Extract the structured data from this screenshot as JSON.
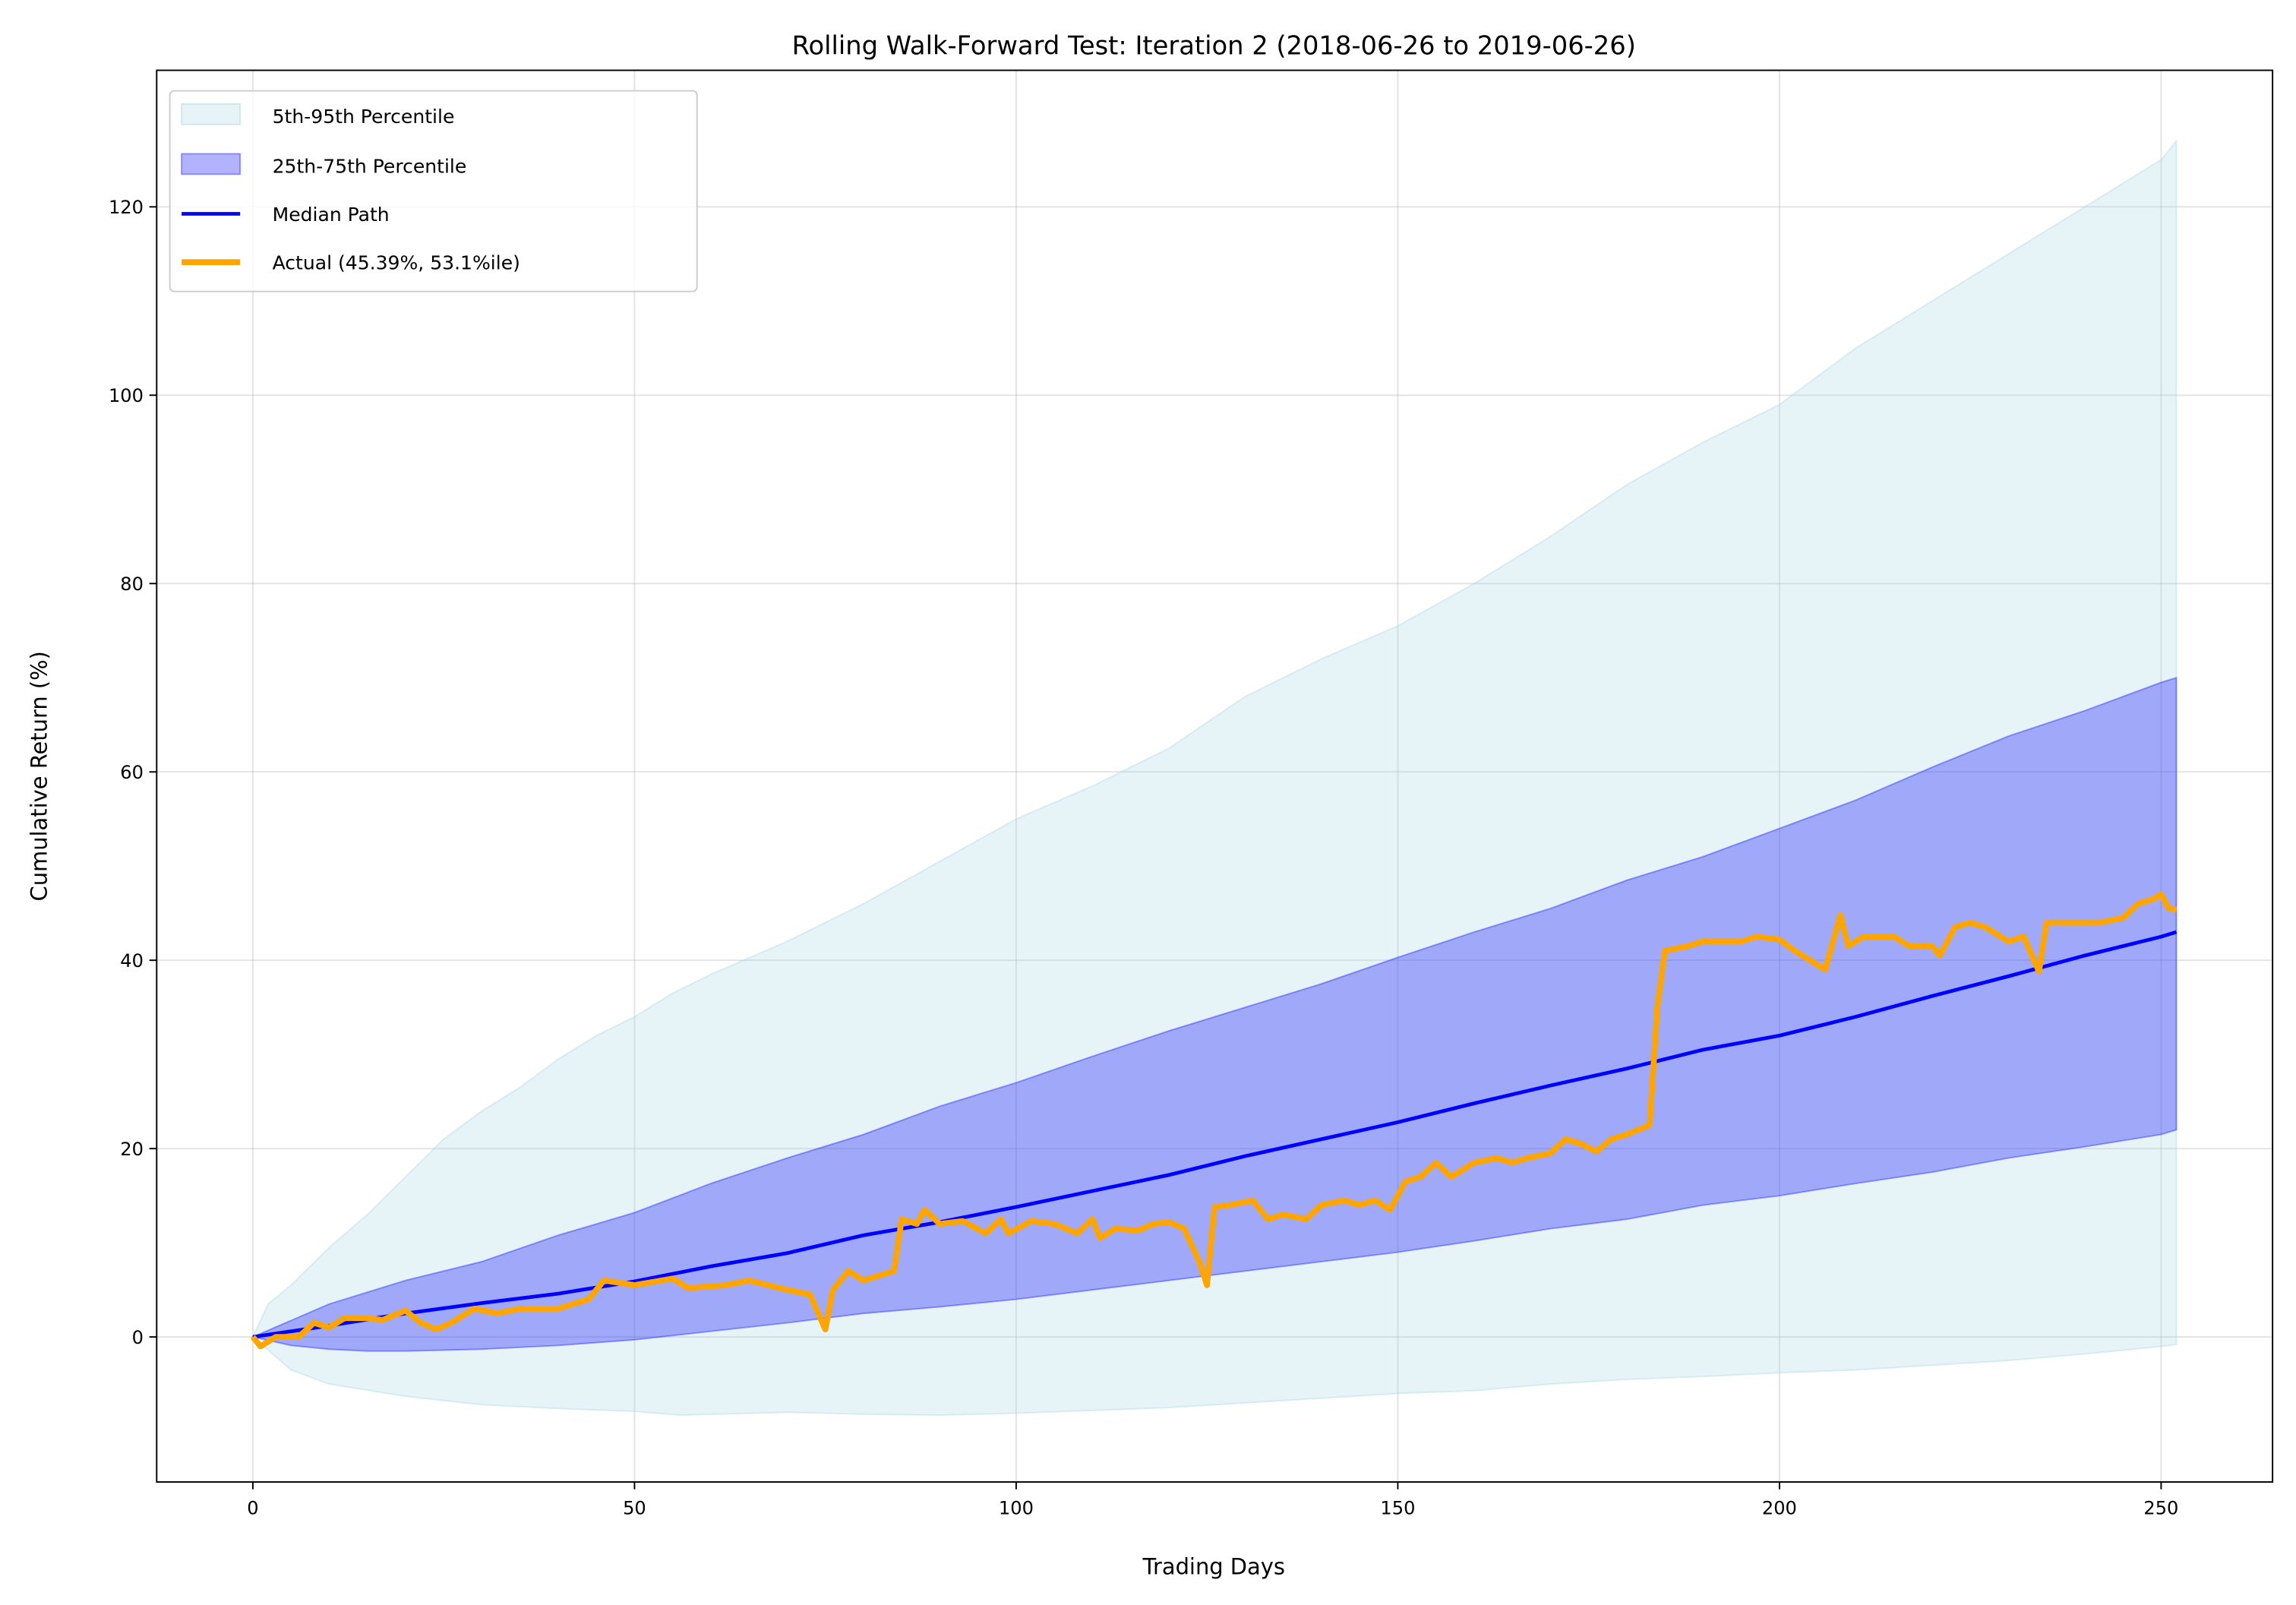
{
  "chart_data": {
    "type": "line",
    "title": "Rolling Walk-Forward Test: Iteration 2 (2018-06-26 to 2019-06-26)",
    "xlabel": "Trading Days",
    "ylabel": "Cumulative Return (%)",
    "xlim": [
      -12.6,
      264.6
    ],
    "ylim": [
      -15.4,
      134.5
    ],
    "xticks": [
      0,
      50,
      100,
      150,
      200,
      250
    ],
    "yticks": [
      0,
      20,
      40,
      60,
      80,
      100,
      120
    ],
    "grid": true,
    "legend_position": "top-left",
    "colors": {
      "band_outer": "#add8e6",
      "band_inner": "#0000ff",
      "median": "#0000ff",
      "actual": "#ffa500"
    },
    "bands": [
      {
        "name": "5th-95th Percentile",
        "lower": [
          [
            0,
            0
          ],
          [
            5,
            -3.5
          ],
          [
            10,
            -5
          ],
          [
            20,
            -6.3
          ],
          [
            30,
            -7.2
          ],
          [
            40,
            -7.6
          ],
          [
            50,
            -7.9
          ],
          [
            56,
            -8.3
          ],
          [
            70,
            -8
          ],
          [
            80,
            -8.2
          ],
          [
            90,
            -8.3
          ],
          [
            100,
            -8.1
          ],
          [
            110,
            -7.8
          ],
          [
            120,
            -7.5
          ],
          [
            130,
            -7
          ],
          [
            140,
            -6.5
          ],
          [
            150,
            -6
          ],
          [
            160,
            -5.7
          ],
          [
            170,
            -5
          ],
          [
            180,
            -4.5
          ],
          [
            190,
            -4.2
          ],
          [
            200,
            -3.8
          ],
          [
            210,
            -3.5
          ],
          [
            220,
            -3
          ],
          [
            230,
            -2.5
          ],
          [
            240,
            -1.8
          ],
          [
            250,
            -1
          ],
          [
            252,
            -0.8
          ]
        ],
        "upper": [
          [
            0,
            0
          ],
          [
            2,
            3.5
          ],
          [
            5,
            5.5
          ],
          [
            10,
            9.5
          ],
          [
            15,
            13
          ],
          [
            20,
            17
          ],
          [
            25,
            21
          ],
          [
            30,
            24
          ],
          [
            35,
            26.5
          ],
          [
            40,
            29.5
          ],
          [
            45,
            32
          ],
          [
            50,
            34
          ],
          [
            55,
            36.5
          ],
          [
            60,
            38.5
          ],
          [
            70,
            42
          ],
          [
            80,
            46
          ],
          [
            90,
            50.5
          ],
          [
            100,
            55
          ],
          [
            110,
            58.5
          ],
          [
            120,
            62.5
          ],
          [
            130,
            68
          ],
          [
            140,
            72
          ],
          [
            150,
            75.5
          ],
          [
            160,
            80
          ],
          [
            170,
            85
          ],
          [
            180,
            90.5
          ],
          [
            190,
            95
          ],
          [
            200,
            99
          ],
          [
            210,
            105
          ],
          [
            220,
            110
          ],
          [
            230,
            115
          ],
          [
            240,
            120
          ],
          [
            250,
            125
          ],
          [
            252,
            127
          ]
        ]
      },
      {
        "name": "25th-75th Percentile",
        "lower": [
          [
            0,
            0
          ],
          [
            5,
            -0.9
          ],
          [
            10,
            -1.3
          ],
          [
            15,
            -1.5
          ],
          [
            20,
            -1.5
          ],
          [
            30,
            -1.3
          ],
          [
            40,
            -0.9
          ],
          [
            50,
            -0.3
          ],
          [
            60,
            0.6
          ],
          [
            70,
            1.5
          ],
          [
            80,
            2.5
          ],
          [
            90,
            3.2
          ],
          [
            100,
            4
          ],
          [
            110,
            5
          ],
          [
            120,
            6
          ],
          [
            130,
            7
          ],
          [
            140,
            8
          ],
          [
            150,
            9
          ],
          [
            160,
            10.2
          ],
          [
            170,
            11.5
          ],
          [
            180,
            12.5
          ],
          [
            190,
            14
          ],
          [
            200,
            15
          ],
          [
            210,
            16.3
          ],
          [
            220,
            17.5
          ],
          [
            230,
            19
          ],
          [
            240,
            20.2
          ],
          [
            250,
            21.5
          ],
          [
            252,
            22
          ]
        ],
        "upper": [
          [
            0,
            0
          ],
          [
            10,
            3.5
          ],
          [
            20,
            6
          ],
          [
            30,
            8
          ],
          [
            40,
            10.8
          ],
          [
            50,
            13.2
          ],
          [
            60,
            16.3
          ],
          [
            70,
            19
          ],
          [
            80,
            21.5
          ],
          [
            90,
            24.5
          ],
          [
            100,
            27
          ],
          [
            110,
            29.8
          ],
          [
            120,
            32.5
          ],
          [
            130,
            35
          ],
          [
            140,
            37.5
          ],
          [
            150,
            40.3
          ],
          [
            160,
            43
          ],
          [
            170,
            45.5
          ],
          [
            180,
            48.5
          ],
          [
            190,
            51
          ],
          [
            200,
            54
          ],
          [
            210,
            57
          ],
          [
            220,
            60.5
          ],
          [
            230,
            63.8
          ],
          [
            240,
            66.5
          ],
          [
            250,
            69.5
          ],
          [
            252,
            70
          ]
        ]
      }
    ],
    "series": [
      {
        "name": "Median Path",
        "points": [
          [
            0,
            0
          ],
          [
            10,
            1.2
          ],
          [
            20,
            2.5
          ],
          [
            30,
            3.6
          ],
          [
            40,
            4.6
          ],
          [
            50,
            5.9
          ],
          [
            60,
            7.5
          ],
          [
            70,
            8.9
          ],
          [
            80,
            10.8
          ],
          [
            90,
            12.2
          ],
          [
            100,
            13.8
          ],
          [
            110,
            15.5
          ],
          [
            120,
            17.2
          ],
          [
            130,
            19.2
          ],
          [
            140,
            21
          ],
          [
            150,
            22.8
          ],
          [
            160,
            24.8
          ],
          [
            170,
            26.7
          ],
          [
            180,
            28.5
          ],
          [
            190,
            30.5
          ],
          [
            200,
            32
          ],
          [
            210,
            34
          ],
          [
            220,
            36.2
          ],
          [
            230,
            38.3
          ],
          [
            240,
            40.5
          ],
          [
            250,
            42.5
          ],
          [
            252,
            43
          ]
        ]
      },
      {
        "name": "Actual (45.39%, 53.1%ile)",
        "points": [
          [
            0,
            0
          ],
          [
            1,
            -1
          ],
          [
            3,
            0
          ],
          [
            6,
            0
          ],
          [
            8,
            1.5
          ],
          [
            10,
            1
          ],
          [
            12,
            2
          ],
          [
            15,
            2
          ],
          [
            17,
            1.8
          ],
          [
            20,
            2.8
          ],
          [
            22,
            1.5
          ],
          [
            24,
            0.8
          ],
          [
            26,
            1.5
          ],
          [
            29,
            3
          ],
          [
            32,
            2.5
          ],
          [
            35,
            3
          ],
          [
            40,
            3
          ],
          [
            44,
            4
          ],
          [
            46,
            6
          ],
          [
            50,
            5.5
          ],
          [
            55,
            6.2
          ],
          [
            57,
            5.2
          ],
          [
            62,
            5.5
          ],
          [
            65,
            6
          ],
          [
            70,
            5
          ],
          [
            73,
            4.5
          ],
          [
            75,
            0.8
          ],
          [
            76,
            5
          ],
          [
            78,
            7
          ],
          [
            80,
            6
          ],
          [
            84,
            7
          ],
          [
            85,
            12.5
          ],
          [
            87,
            12
          ],
          [
            88,
            13.5
          ],
          [
            90,
            12
          ],
          [
            93,
            12.3
          ],
          [
            96,
            11
          ],
          [
            98,
            12.5
          ],
          [
            99,
            11
          ],
          [
            102,
            12.3
          ],
          [
            105,
            12
          ],
          [
            108,
            11
          ],
          [
            110,
            12.5
          ],
          [
            111,
            10.5
          ],
          [
            113,
            11.5
          ],
          [
            116,
            11.3
          ],
          [
            118,
            12
          ],
          [
            120,
            12.2
          ],
          [
            122,
            11.5
          ],
          [
            124,
            8
          ],
          [
            125,
            5.5
          ],
          [
            126,
            13.8
          ],
          [
            128,
            14
          ],
          [
            131,
            14.5
          ],
          [
            133,
            12.5
          ],
          [
            135,
            13
          ],
          [
            138,
            12.5
          ],
          [
            140,
            14
          ],
          [
            143,
            14.5
          ],
          [
            145,
            14
          ],
          [
            147,
            14.5
          ],
          [
            149,
            13.5
          ],
          [
            151,
            16.5
          ],
          [
            153,
            17
          ],
          [
            155,
            18.5
          ],
          [
            157,
            17
          ],
          [
            160,
            18.5
          ],
          [
            163,
            19
          ],
          [
            165,
            18.5
          ],
          [
            167,
            19
          ],
          [
            170,
            19.5
          ],
          [
            172,
            21
          ],
          [
            174,
            20.5
          ],
          [
            176,
            19.7
          ],
          [
            178,
            21
          ],
          [
            180,
            21.5
          ],
          [
            183,
            22.5
          ],
          [
            184,
            35
          ],
          [
            185,
            41
          ],
          [
            188,
            41.5
          ],
          [
            190,
            42
          ],
          [
            195,
            42
          ],
          [
            197,
            42.5
          ],
          [
            200,
            42.2
          ],
          [
            202,
            41
          ],
          [
            205,
            39.5
          ],
          [
            206,
            39
          ],
          [
            208,
            44.8
          ],
          [
            209,
            41.5
          ],
          [
            211,
            42.5
          ],
          [
            215,
            42.5
          ],
          [
            217,
            41.5
          ],
          [
            220,
            41.5
          ],
          [
            221,
            40.5
          ],
          [
            223,
            43.5
          ],
          [
            225,
            44
          ],
          [
            227,
            43.5
          ],
          [
            230,
            42
          ],
          [
            232,
            42.5
          ],
          [
            234,
            38.8
          ],
          [
            235,
            44
          ],
          [
            238,
            44
          ],
          [
            242,
            44
          ],
          [
            245,
            44.5
          ],
          [
            247,
            46
          ],
          [
            249,
            46.5
          ],
          [
            250,
            47
          ],
          [
            251,
            45.5
          ],
          [
            252,
            45.39
          ]
        ]
      }
    ],
    "legend": [
      "5th-95th Percentile",
      "25th-75th Percentile",
      "Median Path",
      "Actual (45.39%, 53.1%ile)"
    ]
  }
}
